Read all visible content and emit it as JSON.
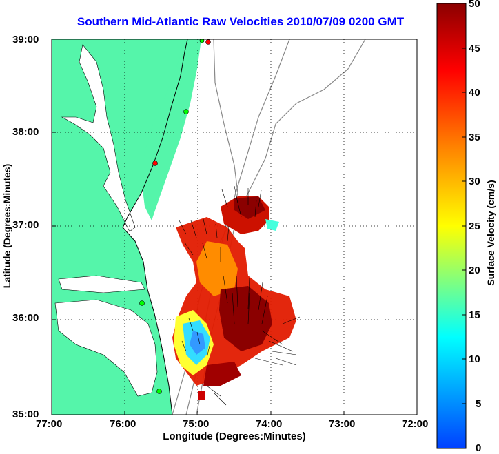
{
  "title": "Southern Mid-Atlantic Raw Velocities 2010/07/09 0200 GMT",
  "xaxis": {
    "label": "Longitude (Degrees:Minutes)",
    "ticks": [
      "77:00",
      "76:00",
      "75:00",
      "74:00",
      "73:00",
      "72:00"
    ]
  },
  "yaxis": {
    "label": "Latitude (Degrees:Minutes)",
    "ticks": [
      "39:00",
      "38:00",
      "37:00",
      "36:00",
      "35:00"
    ]
  },
  "colorbar": {
    "label": "Surface Velocity (cm/s)",
    "ticks": [
      "50",
      "45",
      "40",
      "35",
      "30",
      "25",
      "20",
      "15",
      "10",
      "5",
      "0"
    ],
    "min": 0,
    "max": 50,
    "colors": [
      "#0040ff",
      "#00ffff",
      "#ffff00",
      "#ff8000",
      "#ff0000",
      "#8b0000"
    ]
  },
  "map": {
    "lon_range": [
      -77,
      -72
    ],
    "lat_range": [
      35,
      39
    ],
    "land_color": "#55f5aa",
    "grid": "dotted",
    "stations": [
      {
        "lon": -74.85,
        "lat": 38.95,
        "color": "#ff0000"
      },
      {
        "lon": -75.1,
        "lat": 38.98,
        "color": "#00ff00"
      },
      {
        "lon": -75.15,
        "lat": 38.22,
        "color": "#00ff00"
      },
      {
        "lon": -75.5,
        "lat": 37.46,
        "color": "#ff0000"
      },
      {
        "lon": -75.7,
        "lat": 36.17,
        "color": "#00ff00"
      },
      {
        "lon": -75.5,
        "lat": 35.25,
        "color": "#00ff00"
      }
    ]
  }
}
